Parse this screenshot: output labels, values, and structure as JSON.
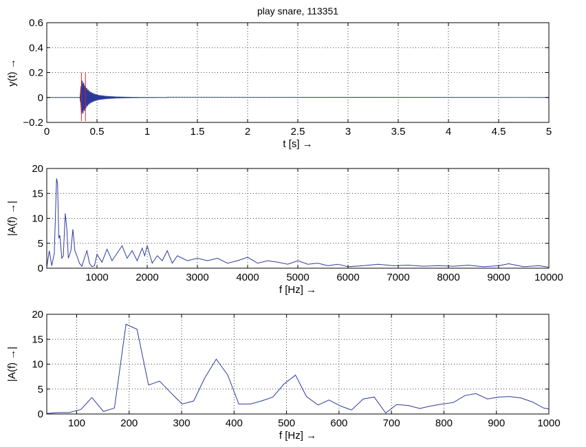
{
  "chart_data": [
    {
      "type": "line",
      "title": "play snare, 113351",
      "xlabel": "t [s] →",
      "ylabel": "y(t)  →",
      "xlim": [
        0,
        5
      ],
      "ylim": [
        -0.2,
        0.6
      ],
      "xticks": [
        0,
        0.5,
        1,
        1.5,
        2,
        2.5,
        3,
        3.5,
        4,
        4.5,
        5
      ],
      "xtick_labels": [
        "0",
        "0.5",
        "1",
        "1.5",
        "2",
        "2.5",
        "3",
        "3.5",
        "4",
        "4.5",
        "5"
      ],
      "yticks": [
        -0.2,
        0,
        0.2,
        0.4,
        0.6
      ],
      "ytick_labels": [
        "−0.2",
        "0",
        "0.2",
        "0.4",
        "0.6"
      ],
      "grid": true,
      "series_color": "#2b3a9a",
      "marker_color": "#e02020",
      "onset_markers": [
        0.345,
        0.385
      ],
      "envelope": {
        "t": [
          0.33,
          0.345,
          0.36,
          0.38,
          0.4,
          0.43,
          0.47,
          0.52,
          0.6,
          0.7,
          0.85,
          1.0,
          1.5,
          5.0
        ],
        "amplitude": [
          0.0,
          0.14,
          0.13,
          0.1,
          0.075,
          0.05,
          0.032,
          0.02,
          0.012,
          0.007,
          0.004,
          0.003,
          0.002,
          0.001
        ]
      }
    },
    {
      "type": "line",
      "xlabel": "f [Hz] →",
      "ylabel": "|A(f) →|",
      "xlim": [
        0,
        10000
      ],
      "ylim": [
        0,
        20
      ],
      "xticks": [
        1000,
        2000,
        3000,
        4000,
        5000,
        6000,
        7000,
        8000,
        9000,
        10000
      ],
      "xtick_labels": [
        "1000",
        "2000",
        "3000",
        "4000",
        "5000",
        "6000",
        "7000",
        "8000",
        "9000",
        "10000"
      ],
      "yticks": [
        0,
        5,
        10,
        15,
        20
      ],
      "ytick_labels": [
        "0",
        "5",
        "10",
        "15",
        "20"
      ],
      "grid": true,
      "series_color": "#2b3a9a",
      "x": [
        0,
        50,
        100,
        150,
        195,
        215,
        240,
        260,
        300,
        330,
        368,
        400,
        430,
        480,
        520,
        560,
        600,
        650,
        700,
        750,
        800,
        850,
        900,
        950,
        1000,
        1100,
        1200,
        1300,
        1400,
        1500,
        1600,
        1700,
        1800,
        1900,
        1950,
        2000,
        2100,
        2200,
        2300,
        2400,
        2500,
        2600,
        2800,
        3000,
        3200,
        3400,
        3600,
        3800,
        4000,
        4200,
        4400,
        4600,
        4800,
        5000,
        5200,
        5400,
        5600,
        5800,
        6000,
        6300,
        6600,
        6900,
        7200,
        7500,
        7800,
        8100,
        8400,
        8700,
        9000,
        9200,
        9500,
        9800,
        10000
      ],
      "y": [
        0.2,
        3.5,
        0.5,
        3.0,
        18,
        17,
        6,
        6.6,
        2,
        2.5,
        11,
        7.8,
        2.0,
        3.5,
        7.8,
        3.5,
        2.5,
        1.0,
        0.4,
        2.0,
        3.5,
        1.0,
        0.3,
        0.5,
        2.8,
        1.2,
        3.8,
        1.5,
        3.0,
        4.5,
        2.0,
        3.5,
        1.5,
        4.0,
        2.5,
        4.5,
        1.0,
        2.5,
        1.5,
        3.5,
        1.0,
        2.5,
        1.5,
        2.0,
        1.5,
        2.0,
        1.0,
        1.5,
        2.2,
        1.0,
        1.5,
        1.2,
        0.8,
        1.5,
        0.8,
        1.0,
        0.5,
        0.8,
        0.3,
        0.5,
        0.8,
        0.5,
        0.6,
        0.4,
        0.5,
        0.4,
        0.6,
        0.3,
        0.5,
        0.9,
        0.3,
        0.5,
        0.2
      ]
    },
    {
      "type": "line",
      "xlabel": "f [Hz] →",
      "ylabel": "|A(f) →|",
      "xlim": [
        43,
        1000
      ],
      "ylim": [
        0,
        20
      ],
      "xticks": [
        100,
        200,
        300,
        400,
        500,
        600,
        700,
        800,
        900,
        1000
      ],
      "xtick_labels": [
        "100",
        "200",
        "300",
        "400",
        "500",
        "600",
        "700",
        "800",
        "900",
        "1000"
      ],
      "yticks": [
        0,
        5,
        10,
        15,
        20
      ],
      "ytick_labels": [
        "0",
        "5",
        "10",
        "15",
        "20"
      ],
      "grid": true,
      "series_color": "#2b3a9a",
      "x": [
        43,
        65,
        86,
        108,
        129,
        151,
        172,
        194,
        215,
        237,
        258,
        280,
        301,
        323,
        344,
        366,
        388,
        409,
        431,
        452,
        474,
        495,
        517,
        538,
        560,
        581,
        603,
        624,
        646,
        667,
        689,
        710,
        732,
        754,
        775,
        797,
        818,
        840,
        861,
        883,
        904,
        926,
        947,
        969,
        990,
        1000
      ],
      "y": [
        0.1,
        0.3,
        0.3,
        0.9,
        3.3,
        0.5,
        1.2,
        18.0,
        17.0,
        5.8,
        6.6,
        4.2,
        2.0,
        2.6,
        7.2,
        11.0,
        7.8,
        2.0,
        2.0,
        2.6,
        3.4,
        6.0,
        7.8,
        3.5,
        1.8,
        2.8,
        1.6,
        0.8,
        3.0,
        3.4,
        0.2,
        1.9,
        1.7,
        1.1,
        1.6,
        2.0,
        2.3,
        3.7,
        4.1,
        3.0,
        3.4,
        3.5,
        3.2,
        2.4,
        1.2,
        1.0
      ]
    }
  ]
}
